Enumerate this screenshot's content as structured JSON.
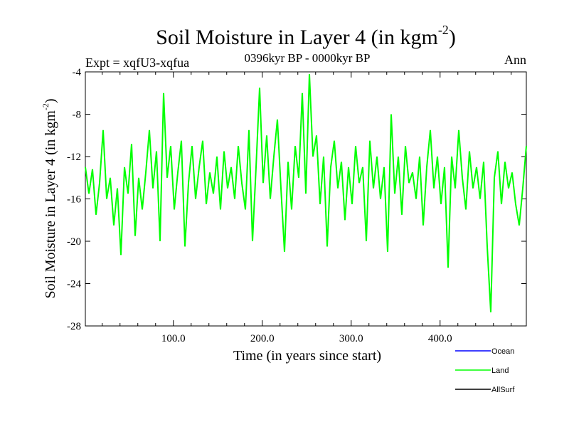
{
  "chart_data": {
    "type": "line",
    "title_main": "Soil Moisture in Layer 4 (in kgm",
    "title_sup": "-2",
    "title_close": ")",
    "subtitle_left": "Expt = xqfU3-xqfua",
    "subtitle_center": "0396kyr BP - 0000kyr BP",
    "subtitle_right": "Ann",
    "xlabel": "Time (in years since start)",
    "ylabel_main": "Soil Moisture in Layer 4 (in kgm",
    "ylabel_sup": "-2",
    "ylabel_close": ")",
    "xlim": [
      1,
      497
    ],
    "ylim": [
      -28,
      -4
    ],
    "x_ticks": [
      100,
      200,
      300,
      400
    ],
    "x_tick_labels": [
      "100.0",
      "200.0",
      "300.0",
      "400.0"
    ],
    "y_ticks": [
      -4,
      -8,
      -12,
      -16,
      -20,
      -24,
      -28
    ],
    "y_tick_labels": [
      "-4",
      "-8",
      "-12",
      "-16",
      "-20",
      "-24",
      "-28"
    ],
    "legend": [
      {
        "name": "Ocean",
        "color": "#0000ff"
      },
      {
        "name": "Land",
        "color": "#00ff00"
      },
      {
        "name": "AllSurf",
        "color": "#000000"
      }
    ],
    "series": [
      {
        "name": "Land",
        "color": "#00ff00",
        "x": [
          1,
          5,
          9,
          13,
          17,
          21,
          25,
          29,
          33,
          37,
          41,
          45,
          49,
          53,
          57,
          61,
          65,
          69,
          73,
          77,
          81,
          85,
          89,
          93,
          97,
          101,
          105,
          109,
          113,
          117,
          121,
          125,
          129,
          133,
          137,
          141,
          145,
          149,
          153,
          157,
          161,
          165,
          169,
          173,
          177,
          181,
          185,
          189,
          193,
          197,
          201,
          205,
          209,
          213,
          217,
          221,
          225,
          229,
          233,
          237,
          241,
          245,
          249,
          253,
          257,
          261,
          265,
          269,
          273,
          277,
          281,
          285,
          289,
          293,
          297,
          301,
          305,
          309,
          313,
          317,
          321,
          325,
          329,
          333,
          337,
          341,
          345,
          349,
          353,
          357,
          361,
          365,
          369,
          373,
          377,
          381,
          385,
          389,
          393,
          397,
          401,
          405,
          409,
          413,
          417,
          421,
          425,
          429,
          433,
          437,
          441,
          445,
          449,
          453,
          457,
          461,
          465,
          469,
          473,
          477,
          481,
          485,
          489,
          493,
          497
        ],
        "values": [
          -13.0,
          -15.5,
          -13.2,
          -17.5,
          -14.5,
          -9.5,
          -16.0,
          -14.0,
          -18.5,
          -15.0,
          -21.3,
          -13.0,
          -15.5,
          -10.8,
          -19.5,
          -14.0,
          -17.0,
          -13.5,
          -9.5,
          -15.0,
          -11.5,
          -20.0,
          -6.0,
          -14.0,
          -11.0,
          -17.0,
          -13.5,
          -10.5,
          -20.5,
          -14.5,
          -11.0,
          -16.0,
          -13.0,
          -10.5,
          -16.5,
          -13.5,
          -15.5,
          -12.0,
          -17.0,
          -11.5,
          -15.0,
          -13.0,
          -16.0,
          -11.0,
          -14.5,
          -17.0,
          -9.5,
          -20.0,
          -13.0,
          -5.5,
          -14.5,
          -10.0,
          -16.0,
          -12.0,
          -8.5,
          -15.0,
          -21.0,
          -12.5,
          -17.0,
          -11.0,
          -14.0,
          -6.0,
          -15.5,
          -4.2,
          -12.0,
          -10.0,
          -16.5,
          -12.0,
          -20.5,
          -13.0,
          -10.5,
          -15.0,
          -12.5,
          -18.0,
          -13.0,
          -16.5,
          -11.0,
          -14.5,
          -13.0,
          -20.0,
          -10.5,
          -15.0,
          -12.0,
          -16.0,
          -13.0,
          -21.0,
          -8.0,
          -15.5,
          -12.0,
          -17.5,
          -11.0,
          -14.5,
          -13.5,
          -16.0,
          -12.0,
          -18.5,
          -13.0,
          -9.5,
          -15.0,
          -12.0,
          -16.5,
          -13.0,
          -22.5,
          -12.0,
          -15.0,
          -9.5,
          -14.0,
          -17.0,
          -11.5,
          -15.0,
          -13.0,
          -16.0,
          -12.5,
          -20.5,
          -26.7,
          -14.0,
          -11.5,
          -16.5,
          -12.5,
          -15.0,
          -13.5,
          -16.5,
          -18.5,
          -15.0,
          -11.0
        ]
      }
    ]
  }
}
